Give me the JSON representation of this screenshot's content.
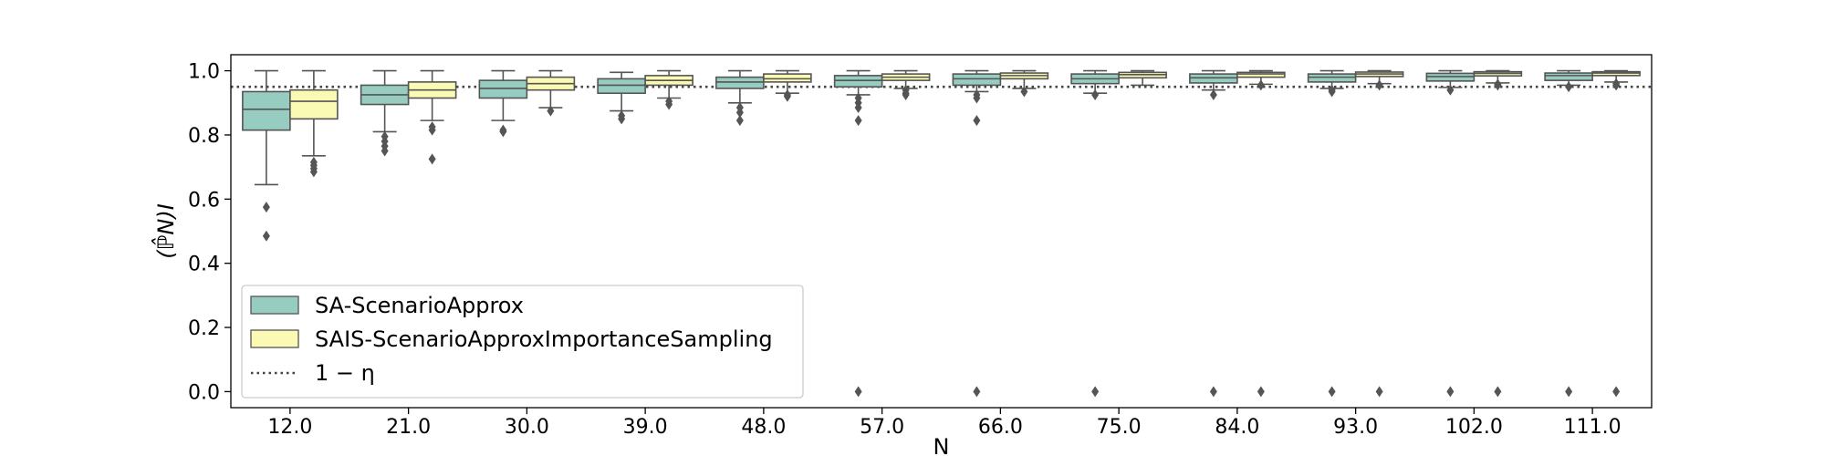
{
  "chart_data": {
    "type": "box",
    "xlabel": "N",
    "ylabel": "(ℙ̂N)I",
    "ylim": [
      -0.05,
      1.05
    ],
    "yticks": [
      0.0,
      0.2,
      0.4,
      0.6,
      0.8,
      1.0
    ],
    "ytick_labels": [
      "0.0",
      "0.2",
      "0.4",
      "0.6",
      "0.8",
      "1.0"
    ],
    "categories": [
      "12.0",
      "21.0",
      "30.0",
      "39.0",
      "48.0",
      "57.0",
      "66.0",
      "75.0",
      "84.0",
      "93.0",
      "102.0",
      "111.0"
    ],
    "reference_line": {
      "value": 0.95,
      "label": "1 − η",
      "style": "dotted",
      "color": "#444444"
    },
    "legend_position": "lower-left",
    "series": [
      {
        "name": "SA-ScenarioApprox",
        "color": "#96cdc0",
        "boxes": [
          {
            "whislo": 0.645,
            "q1": 0.815,
            "med": 0.88,
            "q3": 0.935,
            "whishi": 1.0,
            "fliers": [
              0.575,
              0.485
            ]
          },
          {
            "whislo": 0.81,
            "q1": 0.895,
            "med": 0.925,
            "q3": 0.955,
            "whishi": 1.0,
            "fliers": [
              0.795,
              0.78,
              0.765,
              0.75
            ]
          },
          {
            "whislo": 0.845,
            "q1": 0.915,
            "med": 0.945,
            "q3": 0.97,
            "whishi": 1.0,
            "fliers": [
              0.815,
              0.81
            ]
          },
          {
            "whislo": 0.875,
            "q1": 0.93,
            "med": 0.955,
            "q3": 0.975,
            "whishi": 0.995,
            "fliers": [
              0.86,
              0.85
            ]
          },
          {
            "whislo": 0.9,
            "q1": 0.945,
            "med": 0.965,
            "q3": 0.98,
            "whishi": 1.0,
            "fliers": [
              0.885,
              0.87,
              0.845
            ]
          },
          {
            "whislo": 0.925,
            "q1": 0.95,
            "med": 0.97,
            "q3": 0.985,
            "whishi": 1.0,
            "fliers": [
              0.915,
              0.9,
              0.885,
              0.845,
              0.0
            ]
          },
          {
            "whislo": 0.935,
            "q1": 0.955,
            "med": 0.975,
            "q3": 0.99,
            "whishi": 1.0,
            "fliers": [
              0.925,
              0.915,
              0.845,
              0.0
            ]
          },
          {
            "whislo": 0.93,
            "q1": 0.96,
            "med": 0.975,
            "q3": 0.99,
            "whishi": 1.0,
            "fliers": [
              0.925,
              0.0
            ]
          },
          {
            "whislo": 0.94,
            "q1": 0.962,
            "med": 0.978,
            "q3": 0.99,
            "whishi": 1.0,
            "fliers": [
              0.925,
              0.0
            ]
          },
          {
            "whislo": 0.945,
            "q1": 0.965,
            "med": 0.98,
            "q3": 0.99,
            "whishi": 1.0,
            "fliers": [
              0.94,
              0.935,
              0.0
            ]
          },
          {
            "whislo": 0.948,
            "q1": 0.968,
            "med": 0.982,
            "q3": 0.992,
            "whishi": 1.0,
            "fliers": [
              0.94,
              0.0
            ]
          },
          {
            "whislo": 0.955,
            "q1": 0.97,
            "med": 0.985,
            "q3": 0.993,
            "whishi": 1.0,
            "fliers": [
              0.95,
              0.0
            ]
          }
        ]
      },
      {
        "name": "SAIS-ScenarioApproxImportanceSampling",
        "color": "#fafab4",
        "boxes": [
          {
            "whislo": 0.735,
            "q1": 0.85,
            "med": 0.905,
            "q3": 0.94,
            "whishi": 1.0,
            "fliers": [
              0.715,
              0.705,
              0.695,
              0.685
            ]
          },
          {
            "whislo": 0.845,
            "q1": 0.915,
            "med": 0.94,
            "q3": 0.965,
            "whishi": 1.0,
            "fliers": [
              0.825,
              0.815,
              0.725
            ]
          },
          {
            "whislo": 0.885,
            "q1": 0.94,
            "med": 0.96,
            "q3": 0.98,
            "whishi": 1.0,
            "fliers": [
              0.875
            ]
          },
          {
            "whislo": 0.915,
            "q1": 0.955,
            "med": 0.97,
            "q3": 0.985,
            "whishi": 1.0,
            "fliers": [
              0.905,
              0.895
            ]
          },
          {
            "whislo": 0.93,
            "q1": 0.965,
            "med": 0.975,
            "q3": 0.99,
            "whishi": 1.0,
            "fliers": [
              0.925,
              0.92
            ]
          },
          {
            "whislo": 0.945,
            "q1": 0.97,
            "med": 0.98,
            "q3": 0.99,
            "whishi": 1.0,
            "fliers": [
              0.94,
              0.93,
              0.925
            ]
          },
          {
            "whislo": 0.945,
            "q1": 0.975,
            "med": 0.985,
            "q3": 0.993,
            "whishi": 1.0,
            "fliers": [
              0.935
            ]
          },
          {
            "whislo": 0.955,
            "q1": 0.978,
            "med": 0.988,
            "q3": 0.995,
            "whishi": 1.0,
            "fliers": []
          },
          {
            "whislo": 0.958,
            "q1": 0.98,
            "med": 0.99,
            "q3": 0.995,
            "whishi": 1.0,
            "fliers": [
              0.955,
              0.0
            ]
          },
          {
            "whislo": 0.96,
            "q1": 0.982,
            "med": 0.99,
            "q3": 0.996,
            "whishi": 1.0,
            "fliers": [
              0.955,
              0.0
            ]
          },
          {
            "whislo": 0.962,
            "q1": 0.984,
            "med": 0.992,
            "q3": 0.997,
            "whishi": 1.0,
            "fliers": [
              0.958,
              0.955,
              0.0
            ]
          },
          {
            "whislo": 0.965,
            "q1": 0.985,
            "med": 0.993,
            "q3": 0.997,
            "whishi": 1.0,
            "fliers": [
              0.96,
              0.955,
              0.0
            ]
          }
        ]
      }
    ],
    "edge_color": "#555555",
    "grid": false
  }
}
